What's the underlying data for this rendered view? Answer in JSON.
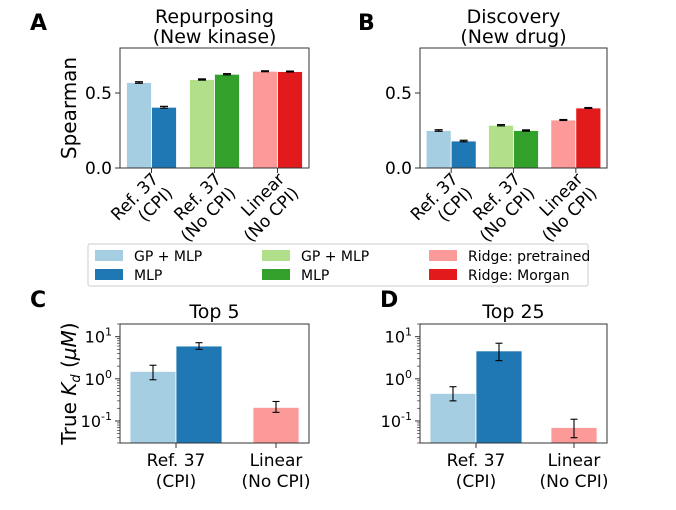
{
  "figure": {
    "panel_letters": [
      "A",
      "B",
      "C",
      "D"
    ]
  },
  "legend": {
    "placement": "center, between top and bottom rows",
    "entries": [
      {
        "label": "GP + MLP",
        "color": "#a6cee3"
      },
      {
        "label": "GP + MLP",
        "color": "#b2df8a"
      },
      {
        "label": "Ridge: pretrained",
        "color": "#fb9a99"
      },
      {
        "label": "MLP",
        "color": "#1f78b4"
      },
      {
        "label": "MLP",
        "color": "#33a02c"
      },
      {
        "label": "Ridge: Morgan",
        "color": "#e31a1c"
      }
    ]
  },
  "chart_data": [
    {
      "panel": "A",
      "type": "bar",
      "title": [
        "Repurposing",
        "(New kinase)"
      ],
      "ylabel": "Spearman",
      "ylim": [
        0,
        0.8
      ],
      "yticks": [
        0.0,
        0.5
      ],
      "ytick_labels": [
        "0.0",
        "0.5"
      ],
      "categories": [
        [
          "Ref. 37",
          "(CPI)"
        ],
        [
          "Ref. 37",
          "(No CPI)"
        ],
        [
          "Linear",
          "(No CPI)"
        ]
      ],
      "bars": [
        {
          "value": 0.57,
          "err": 0.005,
          "color": "#a6cee3"
        },
        {
          "value": 0.405,
          "err": 0.006,
          "color": "#1f78b4"
        },
        {
          "value": 0.59,
          "err": 0.004,
          "color": "#b2df8a"
        },
        {
          "value": 0.625,
          "err": 0.004,
          "color": "#33a02c"
        },
        {
          "value": 0.645,
          "err": 0.003,
          "color": "#fb9a99"
        },
        {
          "value": 0.643,
          "err": 0.003,
          "color": "#e31a1c"
        }
      ]
    },
    {
      "panel": "B",
      "type": "bar",
      "title": [
        "Discovery",
        "(New drug)"
      ],
      "ylabel": "",
      "ylim": [
        0,
        0.8
      ],
      "yticks": [
        0.0,
        0.5
      ],
      "ytick_labels": [
        "0.0",
        "0.5"
      ],
      "categories": [
        [
          "Ref. 37",
          "(CPI)"
        ],
        [
          "Ref. 37",
          "(No CPI)"
        ],
        [
          "Linear",
          "(No CPI)"
        ]
      ],
      "bars": [
        {
          "value": 0.25,
          "err": 0.005,
          "color": "#a6cee3"
        },
        {
          "value": 0.18,
          "err": 0.005,
          "color": "#1f78b4"
        },
        {
          "value": 0.285,
          "err": 0.004,
          "color": "#b2df8a"
        },
        {
          "value": 0.25,
          "err": 0.004,
          "color": "#33a02c"
        },
        {
          "value": 0.32,
          "err": 0.003,
          "color": "#fb9a99"
        },
        {
          "value": 0.4,
          "err": 0.003,
          "color": "#e31a1c"
        }
      ]
    },
    {
      "panel": "C",
      "type": "bar",
      "title": [
        "Top 5"
      ],
      "ylabel": "True K_d (µM)",
      "yscale": "log",
      "ylim": [
        0.03,
        20
      ],
      "yticks": [
        0.1,
        1,
        10
      ],
      "ytick_bases": [
        "10",
        "10",
        "10"
      ],
      "ytick_exps": [
        "-1",
        "0",
        "1"
      ],
      "categories": [
        [
          "Ref. 37",
          "(CPI)"
        ],
        [
          "Linear",
          "(No CPI)"
        ]
      ],
      "bars": [
        {
          "value": 1.5,
          "err_low": 0.95,
          "err_high": 2.1,
          "color": "#a6cee3"
        },
        {
          "value": 6.0,
          "err_low": 5.0,
          "err_high": 7.2,
          "color": "#1f78b4"
        },
        {
          "value": 0.21,
          "err_low": 0.16,
          "err_high": 0.29,
          "color": "#fb9a99"
        }
      ]
    },
    {
      "panel": "D",
      "type": "bar",
      "title": [
        "Top 25"
      ],
      "ylabel": "",
      "yscale": "log",
      "ylim": [
        0.03,
        20
      ],
      "yticks": [
        0.1,
        1,
        10
      ],
      "ytick_bases": [
        "10",
        "10",
        "10"
      ],
      "ytick_exps": [
        "-1",
        "0",
        "1"
      ],
      "categories": [
        [
          "Ref. 37",
          "(CPI)"
        ],
        [
          "Linear",
          "(No CPI)"
        ]
      ],
      "bars": [
        {
          "value": 0.45,
          "err_low": 0.3,
          "err_high": 0.65,
          "color": "#a6cee3"
        },
        {
          "value": 4.6,
          "err_low": 2.7,
          "err_high": 7.0,
          "color": "#1f78b4"
        },
        {
          "value": 0.07,
          "err_low": 0.04,
          "err_high": 0.11,
          "color": "#fb9a99"
        }
      ]
    }
  ]
}
